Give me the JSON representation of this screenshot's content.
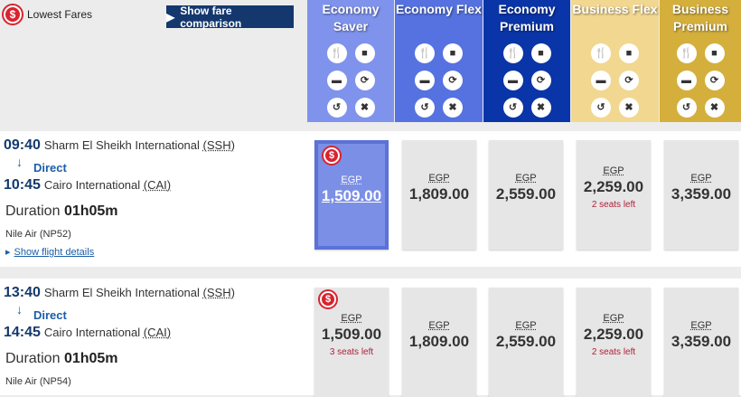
{
  "header": {
    "lowest_fares": "Lowest Fares",
    "compare_button": "Show fare comparison",
    "lowest_icon": "$"
  },
  "fare_columns": [
    {
      "name": "Economy Saver",
      "color": "#7f93ec"
    },
    {
      "name": "Economy Flex",
      "color": "#5572e0"
    },
    {
      "name": "Economy Premium",
      "color": "#0a35a8"
    },
    {
      "name": "Business Flex",
      "color": "#f2d791"
    },
    {
      "name": "Business Premium",
      "color": "#d4af3c"
    }
  ],
  "column_icons": [
    "cutlery-icon",
    "suitcase-icon",
    "cabin-bag-icon",
    "change-icon",
    "refund-icon",
    "cancel-icon"
  ],
  "flights": [
    {
      "dep_time": "09:40",
      "dep_airport": "Sharm El Sheikh International",
      "dep_code": "(SSH)",
      "stops": "Direct",
      "arr_time": "10:45",
      "arr_airport": "Cairo International",
      "arr_code": "(CAI)",
      "duration_label": "Duration",
      "duration": "01h05m",
      "airline": "Nile Air (NP52)",
      "details": "Show flight details",
      "fares": [
        {
          "currency": "EGP",
          "amount": "1,509.00",
          "seats": "",
          "selected": true,
          "lowest": true
        },
        {
          "currency": "EGP",
          "amount": "1,809.00",
          "seats": ""
        },
        {
          "currency": "EGP",
          "amount": "2,559.00",
          "seats": ""
        },
        {
          "currency": "EGP",
          "amount": "2,259.00",
          "seats": "2 seats left"
        },
        {
          "currency": "EGP",
          "amount": "3,359.00",
          "seats": ""
        }
      ]
    },
    {
      "dep_time": "13:40",
      "dep_airport": "Sharm El Sheikh International",
      "dep_code": "(SSH)",
      "stops": "Direct",
      "arr_time": "14:45",
      "arr_airport": "Cairo International",
      "arr_code": "(CAI)",
      "duration_label": "Duration",
      "duration": "01h05m",
      "airline": "Nile Air (NP54)",
      "details": "",
      "fares": [
        {
          "currency": "EGP",
          "amount": "1,509.00",
          "seats": "3 seats left",
          "lowest": true
        },
        {
          "currency": "EGP",
          "amount": "1,809.00",
          "seats": ""
        },
        {
          "currency": "EGP",
          "amount": "2,559.00",
          "seats": ""
        },
        {
          "currency": "EGP",
          "amount": "2,259.00",
          "seats": "2 seats left"
        },
        {
          "currency": "EGP",
          "amount": "3,359.00",
          "seats": ""
        }
      ]
    }
  ]
}
